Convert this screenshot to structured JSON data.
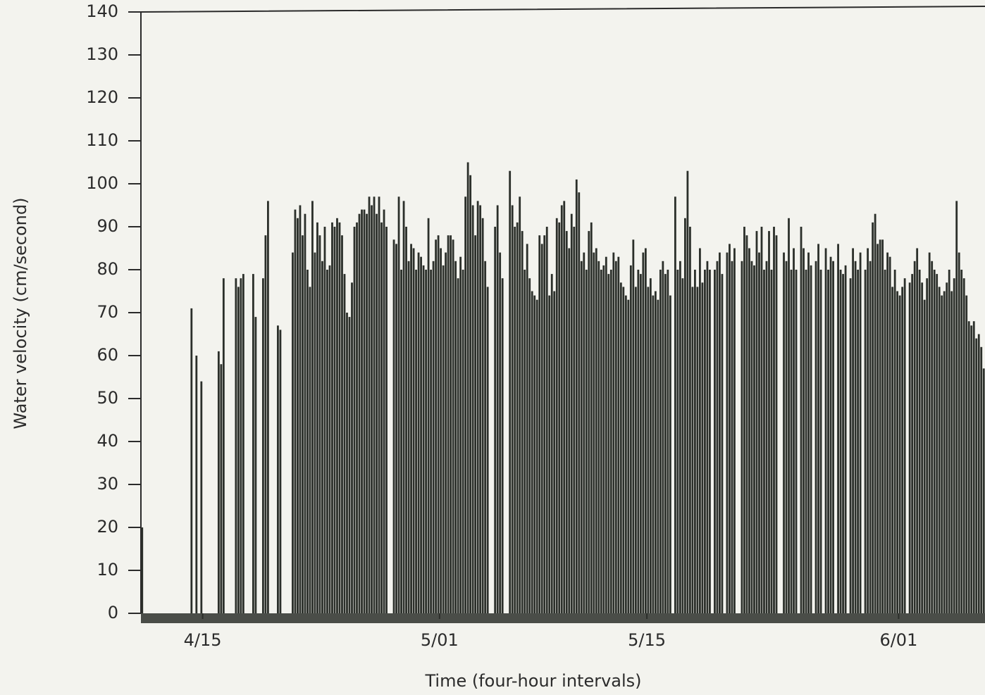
{
  "chart_data": {
    "type": "bar",
    "y_label": "Water velocity (cm/second)",
    "x_label": "Time (four-hour intervals)",
    "color": "#2b2f2a",
    "ylim": [
      0,
      140
    ],
    "yticks": [
      0,
      10,
      20,
      30,
      40,
      50,
      60,
      70,
      80,
      90,
      100,
      110,
      120,
      130,
      140
    ],
    "xlim": [
      0,
      342
    ],
    "xticks": [
      {
        "value": 25,
        "label": "4/15"
      },
      {
        "value": 121,
        "label": "5/01"
      },
      {
        "value": 205,
        "label": "5/15"
      },
      {
        "value": 307,
        "label": "6/01"
      }
    ],
    "x": [
      0,
      1,
      2,
      3,
      4,
      5,
      6,
      7,
      8,
      9,
      10,
      11,
      12,
      13,
      14,
      15,
      16,
      17,
      18,
      19,
      20,
      21,
      22,
      23,
      24,
      25,
      26,
      27,
      28,
      29,
      30,
      31,
      32,
      33,
      34,
      35,
      36,
      37,
      38,
      39,
      40,
      41,
      42,
      43,
      44,
      45,
      46,
      47,
      48,
      49,
      50,
      51,
      52,
      53,
      54,
      55,
      56,
      57,
      58,
      59,
      60,
      61,
      62,
      63,
      64,
      65,
      66,
      67,
      68,
      69,
      70,
      71,
      72,
      73,
      74,
      75,
      76,
      77,
      78,
      79,
      80,
      81,
      82,
      83,
      84,
      85,
      86,
      87,
      88,
      89,
      90,
      91,
      92,
      93,
      94,
      95,
      96,
      97,
      98,
      99,
      100,
      101,
      102,
      103,
      104,
      105,
      106,
      107,
      108,
      109,
      110,
      111,
      112,
      113,
      114,
      115,
      116,
      117,
      118,
      119,
      120,
      121,
      122,
      123,
      124,
      125,
      126,
      127,
      128,
      129,
      130,
      131,
      132,
      133,
      134,
      135,
      136,
      137,
      138,
      139,
      140,
      141,
      142,
      143,
      144,
      145,
      146,
      147,
      148,
      149,
      150,
      151,
      152,
      153,
      154,
      155,
      156,
      157,
      158,
      159,
      160,
      161,
      162,
      163,
      164,
      165,
      166,
      167,
      168,
      169,
      170,
      171,
      172,
      173,
      174,
      175,
      176,
      177,
      178,
      179,
      180,
      181,
      182,
      183,
      184,
      185,
      186,
      187,
      188,
      189,
      190,
      191,
      192,
      193,
      194,
      195,
      196,
      197,
      198,
      199,
      200,
      201,
      202,
      203,
      204,
      205,
      206,
      207,
      208,
      209,
      210,
      211,
      212,
      213,
      214,
      215,
      216,
      217,
      218,
      219,
      220,
      221,
      222,
      223,
      224,
      225,
      226,
      227,
      228,
      229,
      230,
      231,
      232,
      233,
      234,
      235,
      236,
      237,
      238,
      239,
      240,
      241,
      242,
      243,
      244,
      245,
      246,
      247,
      248,
      249,
      250,
      251,
      252,
      253,
      254,
      255,
      256,
      257,
      258,
      259,
      260,
      261,
      262,
      263,
      264,
      265,
      266,
      267,
      268,
      269,
      270,
      271,
      272,
      273,
      274,
      275,
      276,
      277,
      278,
      279,
      280,
      281,
      282,
      283,
      284,
      285,
      286,
      287,
      288,
      289,
      290,
      291,
      292,
      293,
      294,
      295,
      296,
      297,
      298,
      299,
      300,
      301,
      302,
      303,
      304,
      305,
      306,
      307,
      308,
      309,
      310,
      311,
      312,
      313,
      314,
      315,
      316,
      317,
      318,
      319,
      320,
      321,
      322,
      323,
      324,
      325,
      326,
      327,
      328,
      329,
      330,
      331,
      332,
      333,
      334,
      335,
      336,
      337,
      338,
      339,
      340,
      341
    ],
    "values": [
      20,
      0,
      0,
      0,
      0,
      0,
      0,
      0,
      0,
      0,
      0,
      0,
      0,
      0,
      0,
      0,
      0,
      0,
      0,
      0,
      71,
      0,
      60,
      0,
      54,
      0,
      0,
      0,
      0,
      0,
      0,
      61,
      58,
      78,
      0,
      0,
      0,
      0,
      78,
      76,
      78,
      79,
      0,
      0,
      0,
      79,
      69,
      0,
      0,
      78,
      88,
      96,
      0,
      0,
      0,
      67,
      66,
      0,
      0,
      0,
      0,
      84,
      94,
      92,
      95,
      88,
      93,
      80,
      76,
      96,
      84,
      91,
      88,
      82,
      90,
      80,
      81,
      91,
      90,
      92,
      91,
      88,
      79,
      70,
      69,
      77,
      90,
      91,
      93,
      94,
      94,
      93,
      97,
      95,
      97,
      93,
      97,
      91,
      94,
      90,
      0,
      0,
      87,
      86,
      97,
      80,
      96,
      90,
      82,
      86,
      85,
      80,
      84,
      83,
      81,
      80,
      92,
      80,
      82,
      87,
      88,
      85,
      81,
      84,
      88,
      88,
      87,
      82,
      78,
      83,
      80,
      97,
      105,
      102,
      95,
      88,
      96,
      95,
      92,
      82,
      76,
      0,
      0,
      90,
      95,
      84,
      78,
      0,
      0,
      103,
      95,
      90,
      91,
      97,
      89,
      80,
      86,
      78,
      75,
      74,
      73,
      88,
      86,
      88,
      90,
      74,
      79,
      75,
      92,
      91,
      95,
      96,
      89,
      85,
      93,
      90,
      101,
      98,
      82,
      84,
      80,
      89,
      91,
      84,
      85,
      82,
      80,
      81,
      83,
      79,
      80,
      84,
      82,
      83,
      77,
      76,
      74,
      73,
      81,
      87,
      76,
      80,
      79,
      84,
      85,
      76,
      78,
      74,
      75,
      73,
      80,
      82,
      79,
      80,
      74,
      0,
      97,
      80,
      82,
      78,
      92,
      103,
      90,
      76,
      80,
      76,
      85,
      77,
      80,
      82,
      80,
      0,
      80,
      82,
      84,
      79,
      0,
      84,
      86,
      82,
      85,
      0,
      0,
      82,
      90,
      88,
      85,
      82,
      81,
      89,
      84,
      90,
      80,
      82,
      89,
      80,
      90,
      88,
      0,
      0,
      84,
      82,
      92,
      80,
      85,
      80,
      0,
      90,
      85,
      80,
      84,
      81,
      0,
      82,
      86,
      80,
      0,
      85,
      80,
      83,
      82,
      0,
      86,
      80,
      79,
      81,
      0,
      78,
      85,
      82,
      80,
      84,
      0,
      80,
      85,
      82,
      91,
      93,
      86,
      87,
      87,
      80,
      84,
      83,
      76,
      80,
      75,
      74,
      76,
      78,
      0,
      77,
      79,
      82,
      85,
      80,
      77,
      73,
      78,
      84,
      82,
      80,
      79,
      76,
      74,
      75,
      77,
      80,
      75,
      78,
      96,
      84,
      80,
      78,
      74,
      68,
      67,
      68,
      64,
      65,
      62,
      57
    ]
  }
}
